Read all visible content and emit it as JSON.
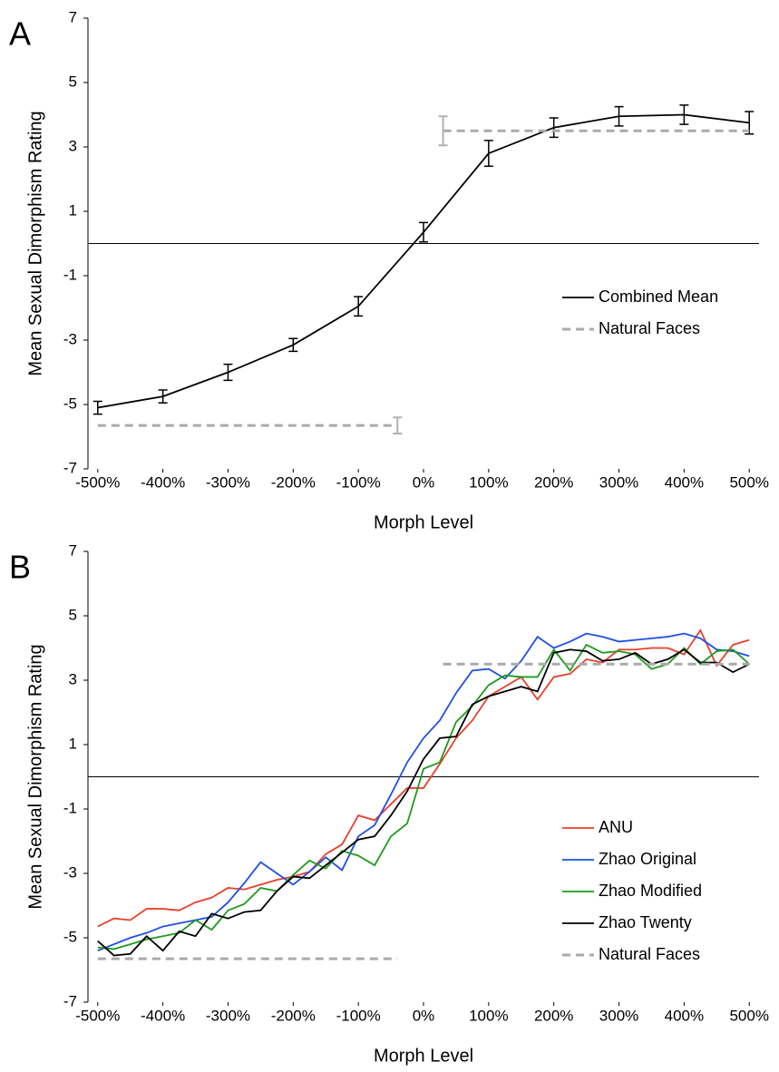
{
  "chart_data": [
    {
      "type": "line",
      "panel_label": "A",
      "xlabel": "Morph Level",
      "ylabel": "Mean Sexual Dimorphism Rating",
      "xlim": [
        -515,
        515
      ],
      "ylim": [
        -7,
        7
      ],
      "yticks": [
        -7,
        -5,
        -3,
        -1,
        1,
        3,
        5,
        7
      ],
      "xticks": [
        {
          "value": -500,
          "label": "-500%"
        },
        {
          "value": -400,
          "label": "-400%"
        },
        {
          "value": -300,
          "label": "-300%"
        },
        {
          "value": -200,
          "label": "-200%"
        },
        {
          "value": -100,
          "label": "-100%"
        },
        {
          "value": 0,
          "label": "0%"
        },
        {
          "value": 100,
          "label": "100%"
        },
        {
          "value": 200,
          "label": "200%"
        },
        {
          "value": 300,
          "label": "300%"
        },
        {
          "value": 400,
          "label": "400%"
        },
        {
          "value": 500,
          "label": "500%"
        }
      ],
      "zero_line": 0,
      "legend": "right",
      "x": [
        -500,
        -400,
        -300,
        -200,
        -100,
        0,
        100,
        200,
        300,
        400,
        500
      ],
      "series": [
        {
          "name": "Combined Mean",
          "color": "#000000",
          "dash": false,
          "values": [
            -5.1,
            -4.75,
            -4.0,
            -3.15,
            -1.95,
            0.35,
            2.8,
            3.6,
            3.95,
            4.0,
            3.75
          ],
          "errors": [
            0.2,
            0.2,
            0.25,
            0.2,
            0.3,
            0.3,
            0.4,
            0.3,
            0.3,
            0.3,
            0.35
          ]
        },
        {
          "name": "Natural Faces",
          "color": "#aaaaaa",
          "dash": true,
          "x": [
            -500,
            -40,
            null,
            30,
            500
          ],
          "values": [
            -5.65,
            -5.65,
            null,
            3.5,
            3.5
          ],
          "errors": [
            null,
            0.25,
            null,
            0.45,
            null
          ]
        }
      ]
    },
    {
      "type": "line",
      "panel_label": "B",
      "xlabel": "Morph Level",
      "ylabel": "Mean Sexual Dimorphism Rating",
      "xlim": [
        -515,
        515
      ],
      "ylim": [
        -7,
        7
      ],
      "yticks": [
        -7,
        -5,
        -3,
        -1,
        1,
        3,
        5,
        7
      ],
      "xticks": [
        {
          "value": -500,
          "label": "-500%"
        },
        {
          "value": -400,
          "label": "-400%"
        },
        {
          "value": -300,
          "label": "-300%"
        },
        {
          "value": -200,
          "label": "-200%"
        },
        {
          "value": -100,
          "label": "-100%"
        },
        {
          "value": 0,
          "label": "0%"
        },
        {
          "value": 100,
          "label": "100%"
        },
        {
          "value": 200,
          "label": "200%"
        },
        {
          "value": 300,
          "label": "300%"
        },
        {
          "value": 400,
          "label": "400%"
        },
        {
          "value": 500,
          "label": "500%"
        }
      ],
      "zero_line": 0,
      "legend": "lower right",
      "x": [
        -500,
        -475,
        -450,
        -425,
        -400,
        -375,
        -350,
        -325,
        -300,
        -275,
        -250,
        -225,
        -200,
        -175,
        -150,
        -125,
        -100,
        -75,
        -50,
        -25,
        0,
        25,
        50,
        75,
        100,
        125,
        150,
        175,
        200,
        225,
        250,
        275,
        300,
        325,
        350,
        375,
        400,
        425,
        450,
        475,
        500
      ],
      "series": [
        {
          "name": "ANU",
          "color": "#e8402a",
          "dash": false,
          "values": [
            -4.65,
            -4.4,
            -4.45,
            -4.1,
            -4.1,
            -4.15,
            -3.9,
            -3.75,
            -3.45,
            -3.5,
            -3.35,
            -3.2,
            -3.1,
            -2.95,
            -2.4,
            -2.1,
            -1.2,
            -1.35,
            -0.85,
            -0.35,
            -0.35,
            0.4,
            1.2,
            1.75,
            2.5,
            2.8,
            3.1,
            2.4,
            3.1,
            3.2,
            3.65,
            3.55,
            3.95,
            3.95,
            4.0,
            4.0,
            3.8,
            4.55,
            3.45,
            4.1,
            4.25
          ]
        },
        {
          "name": "Zhao Original",
          "color": "#1f4fe0",
          "dash": false,
          "values": [
            -5.4,
            -5.2,
            -5.0,
            -4.85,
            -4.65,
            -4.55,
            -4.45,
            -4.35,
            -3.9,
            -3.3,
            -2.65,
            -3.0,
            -3.35,
            -2.95,
            -2.5,
            -2.9,
            -1.85,
            -1.5,
            -0.55,
            0.45,
            1.2,
            1.75,
            2.6,
            3.3,
            3.35,
            3.05,
            3.6,
            4.35,
            4.0,
            4.2,
            4.45,
            4.35,
            4.2,
            4.25,
            4.3,
            4.35,
            4.45,
            4.3,
            3.95,
            3.9,
            3.75
          ]
        },
        {
          "name": "Zhao Modified",
          "color": "#1e9a1e",
          "dash": false,
          "values": [
            -5.3,
            -5.35,
            -5.2,
            -5.05,
            -4.95,
            -4.85,
            -4.45,
            -4.75,
            -4.15,
            -3.95,
            -3.45,
            -3.55,
            -3.05,
            -2.6,
            -2.85,
            -2.3,
            -2.45,
            -2.75,
            -1.85,
            -1.45,
            0.25,
            0.45,
            1.7,
            2.2,
            2.85,
            3.15,
            3.1,
            3.1,
            3.95,
            3.3,
            4.1,
            3.85,
            3.9,
            3.8,
            3.35,
            3.5,
            4.0,
            3.5,
            3.9,
            3.95,
            3.5
          ]
        },
        {
          "name": "Zhao Twenty",
          "color": "#000000",
          "dash": false,
          "values": [
            -5.1,
            -5.55,
            -5.5,
            -4.95,
            -5.4,
            -4.8,
            -4.95,
            -4.25,
            -4.4,
            -4.2,
            -4.15,
            -3.55,
            -3.1,
            -3.15,
            -2.75,
            -2.35,
            -1.95,
            -1.85,
            -1.2,
            -0.45,
            0.55,
            1.2,
            1.25,
            2.25,
            2.5,
            2.65,
            2.8,
            2.65,
            3.85,
            3.95,
            3.9,
            3.6,
            3.65,
            3.85,
            3.5,
            3.65,
            3.95,
            3.55,
            3.55,
            3.25,
            3.5
          ]
        },
        {
          "name": "Natural Faces",
          "color": "#aaaaaa",
          "dash": true,
          "x": [
            -500,
            -40,
            null,
            30,
            500
          ],
          "values": [
            -5.65,
            -5.65,
            null,
            3.5,
            3.5
          ]
        }
      ]
    }
  ]
}
